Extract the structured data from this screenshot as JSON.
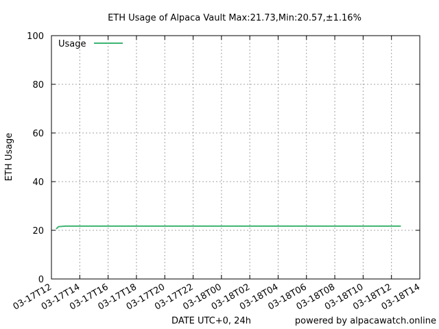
{
  "chart_data": {
    "type": "line",
    "title": "ETH Usage of Alpaca Vault Max:21.73,Min:20.57,±1.16%",
    "xlabel": "DATE UTC+0, 24h",
    "ylabel": "ETH Usage",
    "credit": "powered by alpacawatch.online",
    "ylim": [
      0,
      100
    ],
    "yticks": [
      "0",
      "20",
      "40",
      "60",
      "80",
      "100"
    ],
    "xlim": [
      "03-17T12:00",
      "03-18T14:00"
    ],
    "xticks": [
      "03-17T12",
      "03-17T14",
      "03-17T16",
      "03-17T18",
      "03-17T20",
      "03-17T22",
      "03-18T00",
      "03-18T02",
      "03-18T04",
      "03-18T06",
      "03-18T08",
      "03-18T10",
      "03-18T12",
      "03-18T14"
    ],
    "grid": true,
    "legend_position": "top-left",
    "series": [
      {
        "name": "Usage",
        "color": "#3cb371",
        "x": [
          "03-17T12:20",
          "03-17T12:30",
          "03-17T13:00",
          "03-17T16:00",
          "03-17T20:00",
          "03-18T00:00",
          "03-18T04:00",
          "03-18T08:00",
          "03-18T12:00",
          "03-18T12:40"
        ],
        "y": [
          20.57,
          21.5,
          21.73,
          21.73,
          21.73,
          21.73,
          21.73,
          21.73,
          21.73,
          21.73
        ]
      }
    ]
  }
}
